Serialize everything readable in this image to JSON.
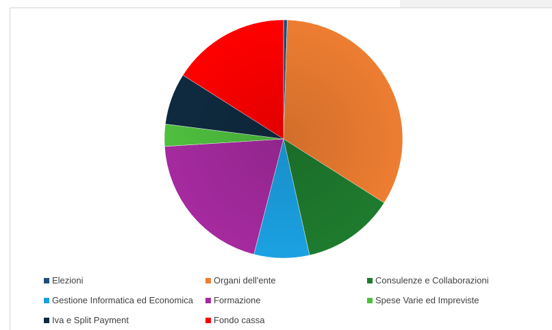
{
  "chart_data": {
    "type": "pie",
    "slices": [
      {
        "label": "Elezioni",
        "value": 0.5,
        "color": "#1f4e79"
      },
      {
        "label": "Organi dell'ente",
        "value": 33.5,
        "color": "#ed7d31"
      },
      {
        "label": "Consulenze e Collaborazioni",
        "value": 12.5,
        "color": "#1e7b2e"
      },
      {
        "label": "Gestione Informatica ed Economica",
        "value": 7.5,
        "color": "#1ba1e2"
      },
      {
        "label": "Formazione",
        "value": 20.0,
        "color": "#a52a9f"
      },
      {
        "label": "Spese Varie ed Impreviste",
        "value": 3.0,
        "color": "#4fbf3f"
      },
      {
        "label": "Iva e Split Payment",
        "value": 7.0,
        "color": "#0f2a3f"
      },
      {
        "label": "Fondo cassa",
        "value": 16.0,
        "color": "#ff0000"
      }
    ],
    "legend_position": "bottom"
  },
  "legend": {
    "items": [
      {
        "label": "Elezioni",
        "color": "#1f4e79"
      },
      {
        "label": "Organi dell'ente",
        "color": "#ed7d31"
      },
      {
        "label": "Consulenze e Collaborazioni",
        "color": "#1e7b2e"
      },
      {
        "label": "Gestione Informatica ed Economica",
        "color": "#1ba1e2"
      },
      {
        "label": "Formazione",
        "color": "#a52a9f"
      },
      {
        "label": "Spese Varie ed Impreviste",
        "color": "#4fbf3f"
      },
      {
        "label": "Iva e Split Payment",
        "color": "#0f2a3f"
      },
      {
        "label": "Fondo cassa",
        "color": "#ff0000"
      }
    ]
  }
}
